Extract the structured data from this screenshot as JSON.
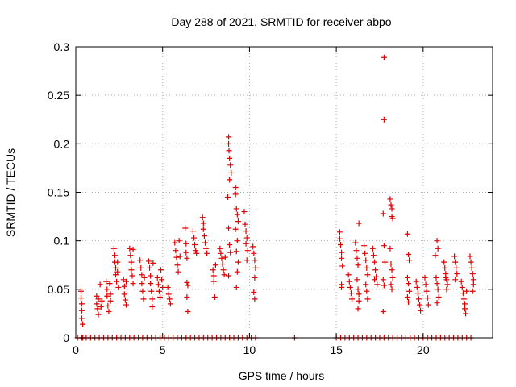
{
  "chart_data": {
    "type": "scatter",
    "title": "Day 288 of 2021, SRMTID for receiver abpo",
    "xlabel": "GPS time / hours",
    "ylabel": "SRMTID / TECUs",
    "xlim": [
      0,
      24
    ],
    "ylim": [
      0,
      0.3
    ],
    "xticks": [
      0,
      5,
      10,
      15,
      20
    ],
    "yticks": [
      0,
      0.05,
      0.1,
      0.15,
      0.2,
      0.25,
      0.3
    ],
    "xtick_labels": [
      "0",
      "5",
      "10",
      "15",
      "20"
    ],
    "ytick_labels": [
      "0",
      "0.05",
      "0.1",
      "0.15",
      "0.2",
      "0.25",
      "0.3"
    ],
    "grid": true,
    "marker": "+",
    "color": "#e00000",
    "series": [
      {
        "name": "SRMTID",
        "points": [
          [
            0.3,
            0.048
          ],
          [
            0.3,
            0.041
          ],
          [
            0.35,
            0.035
          ],
          [
            0.35,
            0.028
          ],
          [
            0.35,
            0.02
          ],
          [
            0.4,
            0.014
          ],
          [
            0.4,
            0.0
          ],
          [
            1.2,
            0.043
          ],
          [
            1.2,
            0.035
          ],
          [
            1.25,
            0.03
          ],
          [
            1.3,
            0.04
          ],
          [
            1.3,
            0.024
          ],
          [
            1.4,
            0.055
          ],
          [
            1.45,
            0.032
          ],
          [
            1.5,
            0.038
          ],
          [
            1.75,
            0.058
          ],
          [
            1.8,
            0.05
          ],
          [
            1.8,
            0.043
          ],
          [
            1.85,
            0.033
          ],
          [
            1.9,
            0.027
          ],
          [
            1.95,
            0.056
          ],
          [
            2.0,
            0.045
          ],
          [
            2.0,
            0.038
          ],
          [
            2.2,
            0.092
          ],
          [
            2.25,
            0.085
          ],
          [
            2.25,
            0.078
          ],
          [
            2.3,
            0.072
          ],
          [
            2.3,
            0.065
          ],
          [
            2.35,
            0.058
          ],
          [
            2.4,
            0.078
          ],
          [
            2.4,
            0.068
          ],
          [
            2.45,
            0.052
          ],
          [
            2.75,
            0.06
          ],
          [
            2.8,
            0.053
          ],
          [
            2.8,
            0.045
          ],
          [
            2.85,
            0.039
          ],
          [
            2.9,
            0.058
          ],
          [
            2.9,
            0.034
          ],
          [
            3.1,
            0.092
          ],
          [
            3.15,
            0.085
          ],
          [
            3.2,
            0.078
          ],
          [
            3.2,
            0.07
          ],
          [
            3.25,
            0.064
          ],
          [
            3.3,
            0.056
          ],
          [
            3.3,
            0.091
          ],
          [
            3.7,
            0.08
          ],
          [
            3.75,
            0.072
          ],
          [
            3.8,
            0.065
          ],
          [
            3.8,
            0.056
          ],
          [
            3.85,
            0.048
          ],
          [
            3.9,
            0.04
          ],
          [
            3.95,
            0.062
          ],
          [
            4.2,
            0.079
          ],
          [
            4.25,
            0.072
          ],
          [
            4.3,
            0.064
          ],
          [
            4.3,
            0.056
          ],
          [
            4.35,
            0.048
          ],
          [
            4.4,
            0.04
          ],
          [
            4.4,
            0.032
          ],
          [
            4.45,
            0.077
          ],
          [
            4.7,
            0.062
          ],
          [
            4.75,
            0.055
          ],
          [
            4.8,
            0.048
          ],
          [
            4.85,
            0.042
          ],
          [
            4.9,
            0.07
          ],
          [
            4.95,
            0.06
          ],
          [
            5.0,
            0.052
          ],
          [
            5.3,
            0.052
          ],
          [
            5.35,
            0.045
          ],
          [
            5.4,
            0.04
          ],
          [
            5.45,
            0.035
          ],
          [
            5.7,
            0.098
          ],
          [
            5.75,
            0.09
          ],
          [
            5.8,
            0.083
          ],
          [
            5.85,
            0.075
          ],
          [
            5.9,
            0.068
          ],
          [
            5.95,
            0.1
          ],
          [
            6.0,
            0.084
          ],
          [
            6.3,
            0.113
          ],
          [
            6.35,
            0.097
          ],
          [
            6.35,
            0.088
          ],
          [
            6.4,
            0.082
          ],
          [
            6.4,
            0.057
          ],
          [
            6.45,
            0.054
          ],
          [
            6.4,
            0.042
          ],
          [
            6.45,
            0.027
          ],
          [
            6.75,
            0.11
          ],
          [
            6.8,
            0.103
          ],
          [
            6.85,
            0.096
          ],
          [
            6.9,
            0.09
          ],
          [
            6.95,
            0.087
          ],
          [
            7.3,
            0.124
          ],
          [
            7.35,
            0.118
          ],
          [
            7.35,
            0.112
          ],
          [
            7.4,
            0.105
          ],
          [
            7.45,
            0.098
          ],
          [
            7.5,
            0.092
          ],
          [
            7.55,
            0.087
          ],
          [
            7.9,
            0.07
          ],
          [
            7.95,
            0.064
          ],
          [
            7.95,
            0.058
          ],
          [
            8.0,
            0.042
          ],
          [
            8.05,
            0.075
          ],
          [
            8.3,
            0.092
          ],
          [
            8.35,
            0.087
          ],
          [
            8.4,
            0.082
          ],
          [
            8.45,
            0.076
          ],
          [
            8.5,
            0.07
          ],
          [
            8.55,
            0.065
          ],
          [
            8.6,
            0.083
          ],
          [
            8.8,
            0.207
          ],
          [
            8.8,
            0.2
          ],
          [
            8.82,
            0.193
          ],
          [
            8.85,
            0.185
          ],
          [
            8.9,
            0.178
          ],
          [
            8.95,
            0.17
          ],
          [
            8.85,
            0.163
          ],
          [
            8.75,
            0.145
          ],
          [
            8.8,
            0.113
          ],
          [
            8.85,
            0.096
          ],
          [
            8.9,
            0.088
          ],
          [
            8.8,
            0.064
          ],
          [
            9.2,
            0.155
          ],
          [
            9.2,
            0.148
          ],
          [
            9.25,
            0.133
          ],
          [
            9.3,
            0.127
          ],
          [
            9.35,
            0.12
          ],
          [
            9.2,
            0.112
          ],
          [
            9.3,
            0.1
          ],
          [
            9.25,
            0.089
          ],
          [
            9.35,
            0.078
          ],
          [
            9.3,
            0.068
          ],
          [
            9.25,
            0.052
          ],
          [
            9.7,
            0.13
          ],
          [
            9.75,
            0.117
          ],
          [
            9.8,
            0.11
          ],
          [
            9.85,
            0.103
          ],
          [
            9.8,
            0.097
          ],
          [
            9.9,
            0.09
          ],
          [
            9.85,
            0.08
          ],
          [
            10.2,
            0.094
          ],
          [
            10.25,
            0.087
          ],
          [
            10.3,
            0.08
          ],
          [
            10.35,
            0.072
          ],
          [
            10.3,
            0.062
          ],
          [
            10.25,
            0.047
          ],
          [
            10.3,
            0.04
          ],
          [
            15.2,
            0.109
          ],
          [
            15.2,
            0.102
          ],
          [
            15.25,
            0.096
          ],
          [
            15.3,
            0.088
          ],
          [
            15.3,
            0.082
          ],
          [
            15.35,
            0.074
          ],
          [
            15.3,
            0.055
          ],
          [
            15.3,
            0.052
          ],
          [
            15.7,
            0.065
          ],
          [
            15.75,
            0.058
          ],
          [
            15.8,
            0.052
          ],
          [
            15.85,
            0.046
          ],
          [
            15.9,
            0.04
          ],
          [
            16.1,
            0.098
          ],
          [
            16.15,
            0.09
          ],
          [
            16.2,
            0.082
          ],
          [
            16.25,
            0.075
          ],
          [
            16.3,
            0.118
          ],
          [
            16.2,
            0.06
          ],
          [
            16.25,
            0.05
          ],
          [
            16.3,
            0.045
          ],
          [
            16.3,
            0.038
          ],
          [
            16.25,
            0.03
          ],
          [
            16.6,
            0.095
          ],
          [
            16.65,
            0.087
          ],
          [
            16.7,
            0.08
          ],
          [
            16.75,
            0.072
          ],
          [
            16.8,
            0.065
          ],
          [
            16.7,
            0.055
          ],
          [
            16.75,
            0.048
          ],
          [
            16.8,
            0.04
          ],
          [
            17.1,
            0.092
          ],
          [
            17.15,
            0.085
          ],
          [
            17.2,
            0.078
          ],
          [
            17.25,
            0.07
          ],
          [
            17.3,
            0.063
          ],
          [
            17.35,
            0.055
          ],
          [
            17.2,
            0.06
          ],
          [
            17.75,
            0.289
          ],
          [
            17.75,
            0.225
          ],
          [
            17.7,
            0.128
          ],
          [
            17.75,
            0.095
          ],
          [
            17.8,
            0.078
          ],
          [
            17.7,
            0.06
          ],
          [
            17.75,
            0.054
          ],
          [
            17.7,
            0.027
          ],
          [
            18.1,
            0.143
          ],
          [
            18.15,
            0.137
          ],
          [
            18.2,
            0.133
          ],
          [
            18.2,
            0.125
          ],
          [
            18.25,
            0.123
          ],
          [
            18.1,
            0.092
          ],
          [
            18.15,
            0.076
          ],
          [
            18.2,
            0.07
          ],
          [
            18.25,
            0.062
          ],
          [
            18.15,
            0.055
          ],
          [
            18.2,
            0.05
          ],
          [
            19.1,
            0.107
          ],
          [
            19.15,
            0.086
          ],
          [
            19.2,
            0.08
          ],
          [
            19.1,
            0.062
          ],
          [
            19.15,
            0.056
          ],
          [
            19.2,
            0.048
          ],
          [
            19.1,
            0.042
          ],
          [
            19.15,
            0.037
          ],
          [
            19.6,
            0.058
          ],
          [
            19.65,
            0.052
          ],
          [
            19.7,
            0.046
          ],
          [
            19.75,
            0.04
          ],
          [
            19.8,
            0.034
          ],
          [
            19.85,
            0.028
          ],
          [
            20.1,
            0.062
          ],
          [
            20.15,
            0.055
          ],
          [
            20.2,
            0.048
          ],
          [
            20.25,
            0.041
          ],
          [
            20.3,
            0.034
          ],
          [
            20.8,
            0.1
          ],
          [
            20.85,
            0.092
          ],
          [
            20.7,
            0.085
          ],
          [
            20.75,
            0.062
          ],
          [
            20.8,
            0.056
          ],
          [
            20.85,
            0.05
          ],
          [
            20.9,
            0.042
          ],
          [
            20.8,
            0.036
          ],
          [
            21.2,
            0.078
          ],
          [
            21.25,
            0.072
          ],
          [
            21.3,
            0.066
          ],
          [
            21.35,
            0.06
          ],
          [
            21.4,
            0.055
          ],
          [
            21.3,
            0.062
          ],
          [
            21.35,
            0.05
          ],
          [
            21.8,
            0.084
          ],
          [
            21.85,
            0.078
          ],
          [
            21.9,
            0.072
          ],
          [
            21.95,
            0.066
          ],
          [
            21.85,
            0.06
          ],
          [
            22.2,
            0.058
          ],
          [
            22.25,
            0.052
          ],
          [
            22.3,
            0.046
          ],
          [
            22.35,
            0.04
          ],
          [
            22.4,
            0.035
          ],
          [
            22.4,
            0.03
          ],
          [
            22.45,
            0.025
          ],
          [
            22.5,
            0.048
          ],
          [
            22.7,
            0.084
          ],
          [
            22.75,
            0.078
          ],
          [
            22.8,
            0.072
          ],
          [
            22.85,
            0.066
          ],
          [
            22.9,
            0.06
          ],
          [
            22.9,
            0.055
          ],
          [
            22.85,
            0.048
          ]
        ],
        "zero_runs": [
          [
            0.1,
            10.4,
            0.25
          ],
          [
            12.6,
            12.6,
            0.1
          ],
          [
            15.0,
            22.9,
            0.25
          ]
        ]
      }
    ]
  }
}
